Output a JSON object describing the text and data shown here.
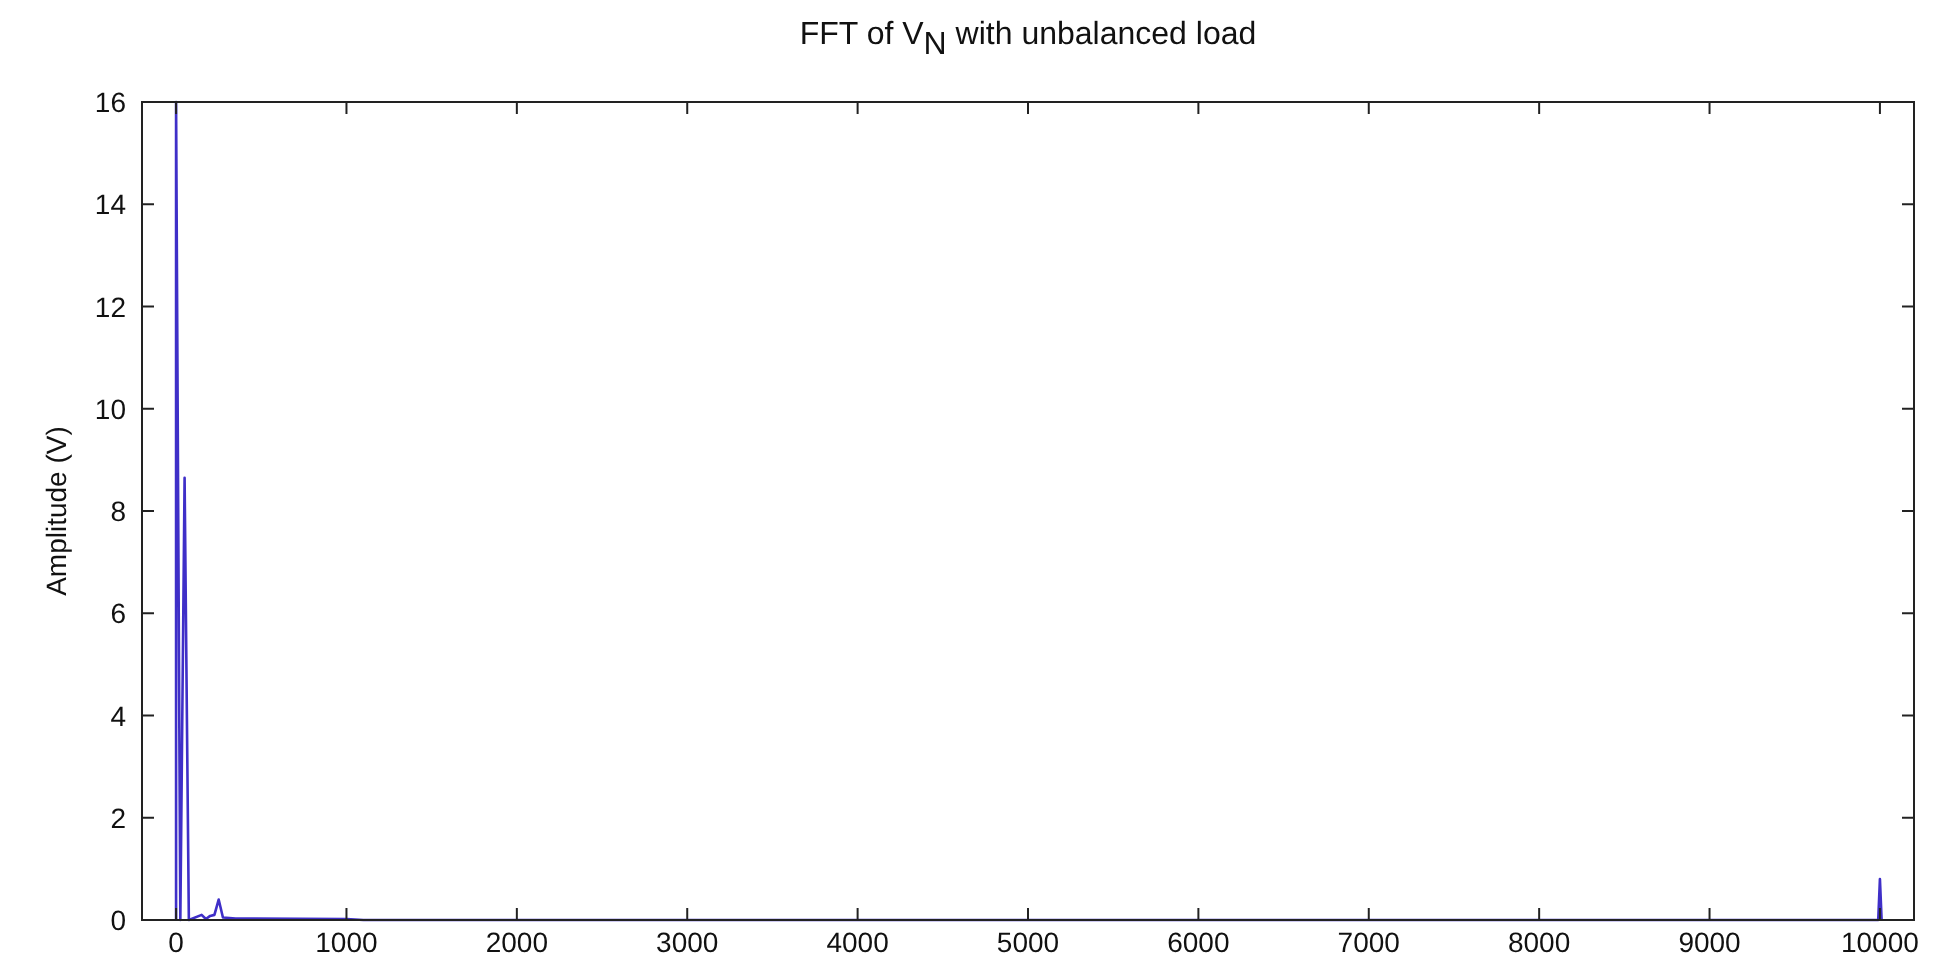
{
  "chart_data": {
    "type": "line",
    "title": "FFT of V$_{N}$ with unbalanced load",
    "ylabel": "Amplitude (V)",
    "series": [
      {
        "color": "#3f2fc8",
        "x": [
          0,
          0,
          25,
          50,
          75,
          150,
          175,
          200,
          225,
          250,
          275,
          350,
          450,
          1000,
          1100,
          9990,
          10000,
          10010
        ],
        "values": [
          0,
          16,
          0,
          8.65,
          0,
          0.1,
          0.02,
          0.08,
          0.1,
          0.4,
          0.05,
          0.03,
          0.03,
          0.02,
          0,
          0,
          0.8,
          0
        ]
      }
    ],
    "xlim": [
      -200,
      10200
    ],
    "ylim": [
      0,
      16
    ],
    "xticks": [
      0,
      1000,
      2000,
      3000,
      4000,
      5000,
      6000,
      7000,
      8000,
      9000,
      10000
    ],
    "yticks": [
      0,
      2,
      4,
      6,
      8,
      10,
      12,
      14,
      16
    ],
    "grid": false,
    "marker": "none",
    "line_style": "solid"
  }
}
